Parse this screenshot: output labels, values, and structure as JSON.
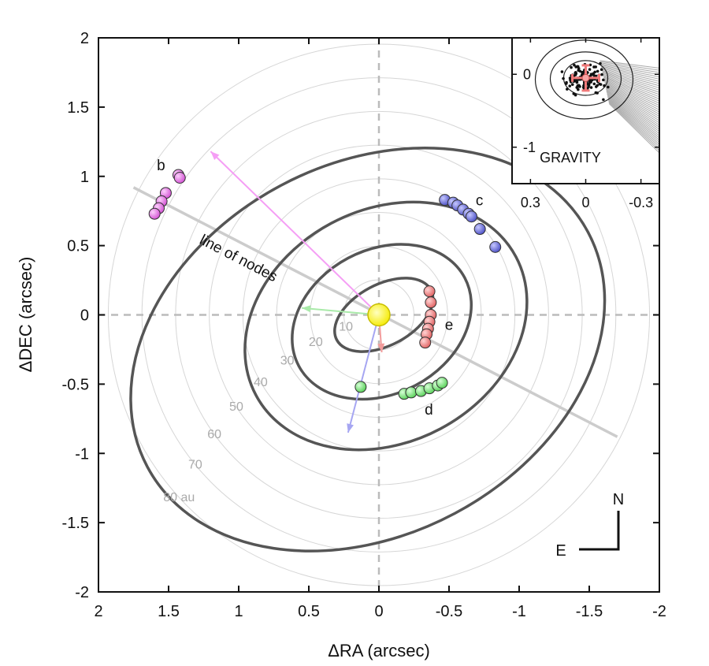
{
  "chart_data": {
    "type": "scatter",
    "xlabel": "ΔRA (arcsec)",
    "ylabel": "ΔDEC (arcsec)",
    "xlim": [
      2,
      -2
    ],
    "ylim": [
      -2,
      2
    ],
    "x_ticks": [
      2,
      1.5,
      1,
      0.5,
      0,
      -0.5,
      -1,
      -1.5,
      -2
    ],
    "x_tick_labels": [
      "2",
      "1.5",
      "1",
      "0.5",
      "0",
      "-0.5",
      "-1",
      "-1.5",
      "-2"
    ],
    "y_ticks": [
      2,
      1.5,
      1,
      0.5,
      0,
      -0.5,
      -1,
      -1.5,
      -2
    ],
    "y_tick_labels": [
      "2",
      "1.5",
      "1",
      "0.5",
      "0",
      "-0.5",
      "-1",
      "-1.5",
      "-2"
    ],
    "distance_rings": [
      {
        "label": "10",
        "r": 0.25
      },
      {
        "label": "20",
        "r": 0.49
      },
      {
        "label": "30",
        "r": 0.73
      },
      {
        "label": "40",
        "r": 0.97
      },
      {
        "label": "50",
        "r": 1.21
      },
      {
        "label": "60",
        "r": 1.45
      },
      {
        "label": "70",
        "r": 1.69
      },
      {
        "label": "80 au",
        "r": 1.93
      }
    ],
    "orbits": [
      {
        "name": "b",
        "cx": 0.08,
        "cy": -0.25,
        "rx": 1.78,
        "ry": 1.34,
        "rot": -28
      },
      {
        "name": "c",
        "cx": -0.05,
        "cy": -0.08,
        "rx": 1.05,
        "ry": 0.84,
        "rot": -28
      },
      {
        "name": "d",
        "cx": -0.02,
        "cy": -0.05,
        "rx": 0.67,
        "ry": 0.52,
        "rot": -28
      },
      {
        "name": "e",
        "cx": -0.035,
        "cy": 0.0,
        "rx": 0.38,
        "ry": 0.22,
        "rot": -28
      }
    ],
    "line_of_nodes": {
      "label": "line of nodes",
      "from": [
        1.75,
        0.92
      ],
      "to": [
        -1.7,
        -0.88
      ]
    },
    "star": {
      "x": 0,
      "y": 0
    },
    "series": [
      {
        "name": "b",
        "color": "#e36be3",
        "points": [
          [
            1.43,
            1.01
          ],
          [
            1.42,
            0.99
          ],
          [
            1.52,
            0.88
          ],
          [
            1.55,
            0.82
          ],
          [
            1.57,
            0.77
          ],
          [
            1.6,
            0.73
          ]
        ]
      },
      {
        "name": "c",
        "color": "#5a5ed6",
        "points": [
          [
            -0.47,
            0.83
          ],
          [
            -0.53,
            0.81
          ],
          [
            -0.56,
            0.79
          ],
          [
            -0.6,
            0.76
          ],
          [
            -0.64,
            0.73
          ],
          [
            -0.66,
            0.71
          ],
          [
            -0.72,
            0.62
          ],
          [
            -0.83,
            0.49
          ]
        ]
      },
      {
        "name": "d",
        "color": "#6ee36e",
        "points": [
          [
            0.13,
            -0.52
          ],
          [
            -0.18,
            -0.57
          ],
          [
            -0.23,
            -0.56
          ],
          [
            -0.3,
            -0.55
          ],
          [
            -0.36,
            -0.53
          ],
          [
            -0.42,
            -0.51
          ],
          [
            -0.45,
            -0.49
          ]
        ]
      },
      {
        "name": "e",
        "color": "#f07a7a",
        "points": [
          [
            -0.36,
            0.17
          ],
          [
            -0.37,
            0.09
          ],
          [
            -0.37,
            0.0
          ],
          [
            -0.36,
            -0.05
          ],
          [
            -0.35,
            -0.1
          ],
          [
            -0.34,
            -0.14
          ],
          [
            -0.33,
            -0.2
          ]
        ]
      }
    ],
    "arrows": [
      {
        "color": "#f59ef5",
        "to": [
          1.2,
          1.18
        ]
      },
      {
        "color": "#a9eaa9",
        "to": [
          0.55,
          0.05
        ]
      },
      {
        "color": "#a6a6f2",
        "to": [
          0.22,
          -0.85
        ]
      },
      {
        "color": "#f29c9c",
        "to": [
          -0.02,
          -0.27
        ]
      }
    ],
    "inset": {
      "label": "GRAVITY",
      "xlim": [
        0.4,
        -0.4
      ],
      "ylim": [
        -1.5,
        0.5
      ],
      "x_ticks": [
        0.3,
        0,
        -0.3
      ],
      "x_tick_labels": [
        "0.3",
        "0",
        "-0.3"
      ],
      "y_ticks": [
        0,
        -1
      ],
      "y_tick_labels": [
        "0",
        "-1"
      ],
      "center": [
        0,
        -0.05
      ]
    },
    "compass": {
      "north": "N",
      "east": "E"
    }
  }
}
